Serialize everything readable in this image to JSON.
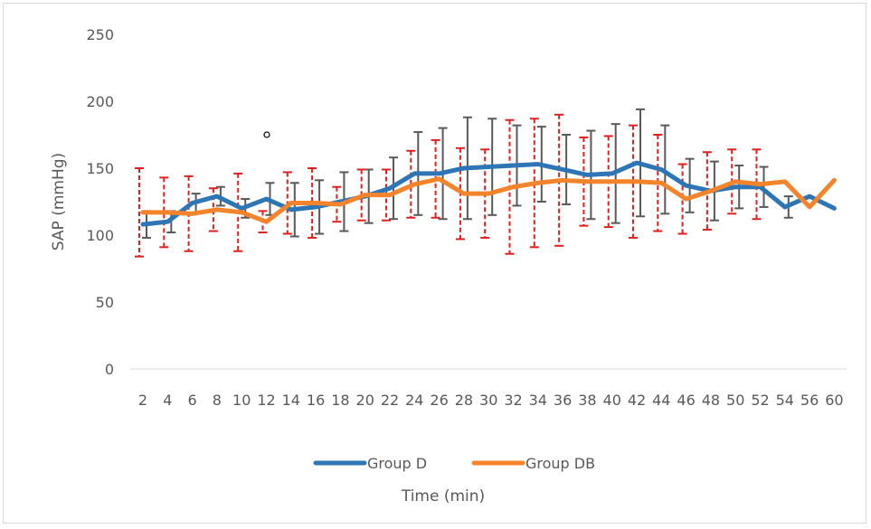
{
  "chart_data": {
    "type": "line",
    "title": "",
    "xlabel": "Time (min)",
    "ylabel": "SAP (mmHg)",
    "ylim": [
      0,
      250
    ],
    "yticks": [
      0,
      50,
      100,
      150,
      200,
      250
    ],
    "categories": [
      "2",
      "4",
      "6",
      "8",
      "10",
      "12",
      "14",
      "16",
      "18",
      "20",
      "22",
      "24",
      "26",
      "28",
      "30",
      "32",
      "34",
      "36",
      "38",
      "40",
      "42",
      "44",
      "46",
      "48",
      "50",
      "52",
      "54",
      "56",
      "60"
    ],
    "grid": false,
    "legend_position": "bottom",
    "series": [
      {
        "name": "Group D",
        "color": "#2e75b6",
        "error_color": "#595959",
        "values": [
          108,
          110,
          124,
          129,
          120,
          127,
          119,
          121,
          125,
          129,
          135,
          146,
          146,
          150,
          151,
          152,
          153,
          149,
          145,
          146,
          154,
          149,
          137,
          133,
          136,
          136,
          121,
          129,
          120
        ],
        "errors": [
          10,
          8,
          7,
          7,
          7,
          12,
          20,
          20,
          22,
          20,
          23,
          31,
          34,
          38,
          36,
          30,
          28,
          26,
          33,
          37,
          40,
          33,
          20,
          22,
          16,
          15,
          8,
          0,
          0
        ]
      },
      {
        "name": "Group DB",
        "color": "#f4842b",
        "error_color": "#e02020",
        "values": [
          117,
          117,
          116,
          119,
          117,
          110,
          124,
          124,
          123,
          130,
          130,
          138,
          142,
          131,
          131,
          136,
          139,
          141,
          140,
          140,
          140,
          139,
          127,
          133,
          140,
          138,
          140,
          121,
          141
        ],
        "errors": [
          33,
          26,
          28,
          16,
          29,
          8,
          23,
          26,
          13,
          19,
          19,
          25,
          29,
          34,
          33,
          50,
          48,
          49,
          33,
          34,
          42,
          36,
          26,
          29,
          24,
          26,
          0,
          0,
          0
        ]
      }
    ]
  }
}
